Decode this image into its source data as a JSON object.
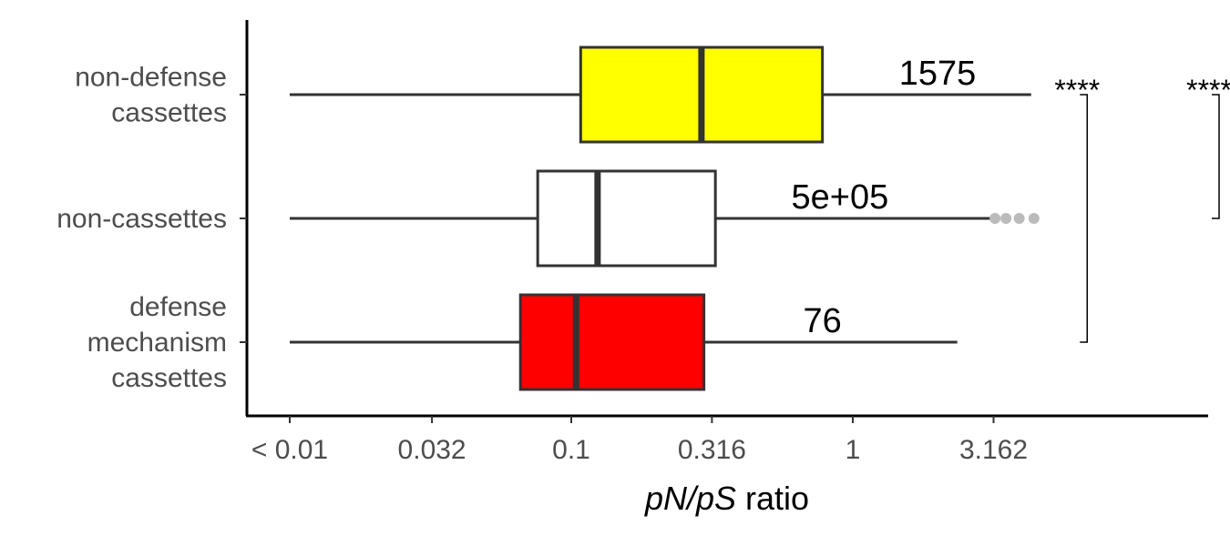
{
  "chart_data": {
    "type": "boxplot",
    "orientation": "horizontal",
    "x_scale": "log10",
    "xlabel_italic": "pN/pS",
    "xlabel_rest": "ratio",
    "x_ticks": [
      {
        "value": 0.01,
        "label": "< 0.01"
      },
      {
        "value": 0.032,
        "label": "0.032"
      },
      {
        "value": 0.1,
        "label": "0.1"
      },
      {
        "value": 0.316,
        "label": "0.316"
      },
      {
        "value": 1,
        "label": "1"
      },
      {
        "value": 3.162,
        "label": "3.162"
      }
    ],
    "xlim": [
      0.0065,
      50
    ],
    "groups": [
      {
        "label_lines": [
          "non-defense",
          "cassettes"
        ],
        "fill": "#ffff00",
        "whisker_low": 0.01,
        "q1": 0.108,
        "median": 0.29,
        "q3": 0.78,
        "whisker_high": 4.3,
        "outliers": [],
        "count_label": "1575",
        "count_x": 2.0
      },
      {
        "label_lines": [
          "non-cassettes"
        ],
        "fill": "#ffffff",
        "whisker_low": 0.01,
        "q1": 0.076,
        "median": 0.124,
        "q3": 0.325,
        "whisker_high": 3.2,
        "outliers": [
          3.2,
          3.5,
          3.9,
          4.4
        ],
        "count_label": "5e+05",
        "count_x": 0.9
      },
      {
        "label_lines": [
          "defense",
          "mechanism",
          "cassettes"
        ],
        "fill": "#ff0000",
        "whisker_low": 0.01,
        "q1": 0.066,
        "median": 0.104,
        "q3": 0.296,
        "whisker_high": 2.35,
        "outliers": [],
        "count_label": "76",
        "count_x": 0.78
      }
    ],
    "comparisons": [
      {
        "group_a": 0,
        "group_b": 2,
        "label": "****",
        "x": 6.8
      },
      {
        "group_a": 0,
        "group_b": 1,
        "label": "****",
        "x": 20
      }
    ],
    "colors": {
      "outline": "#333333",
      "outlier": "#bbbbbb",
      "axis": "#000000"
    }
  }
}
